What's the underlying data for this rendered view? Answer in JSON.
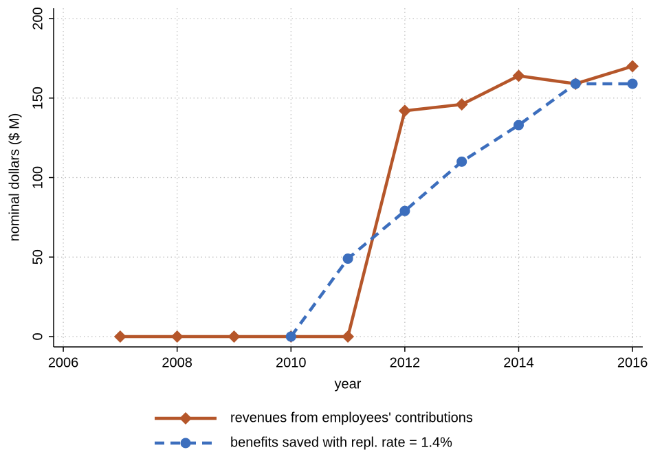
{
  "chart_data": {
    "type": "line",
    "x_label": "year",
    "y_label": "nominal dollars ($ M)",
    "x": [
      2007,
      2008,
      2009,
      2010,
      2011,
      2012,
      2013,
      2014,
      2015,
      2016
    ],
    "series": [
      {
        "name": "revenues from employees' contributions",
        "color": "#b5562a",
        "marker": "diamond",
        "dash": "solid",
        "values": [
          0,
          0,
          0,
          0,
          0,
          142,
          146,
          164,
          159,
          170
        ]
      },
      {
        "name": "benefits saved with repl. rate = 1.4%",
        "color": "#3c6ebd",
        "marker": "circle",
        "dash": "dashed",
        "values": [
          null,
          null,
          null,
          0,
          49,
          79,
          110,
          133,
          159,
          159
        ]
      }
    ],
    "xlim": [
      2005.83,
      2016.18
    ],
    "ylim": [
      -6.5,
      206.5
    ],
    "xticks": [
      2006,
      2008,
      2010,
      2012,
      2014,
      2016
    ],
    "yticks": [
      0,
      50,
      100,
      150,
      200
    ],
    "grid": true,
    "legend": "bottom"
  }
}
